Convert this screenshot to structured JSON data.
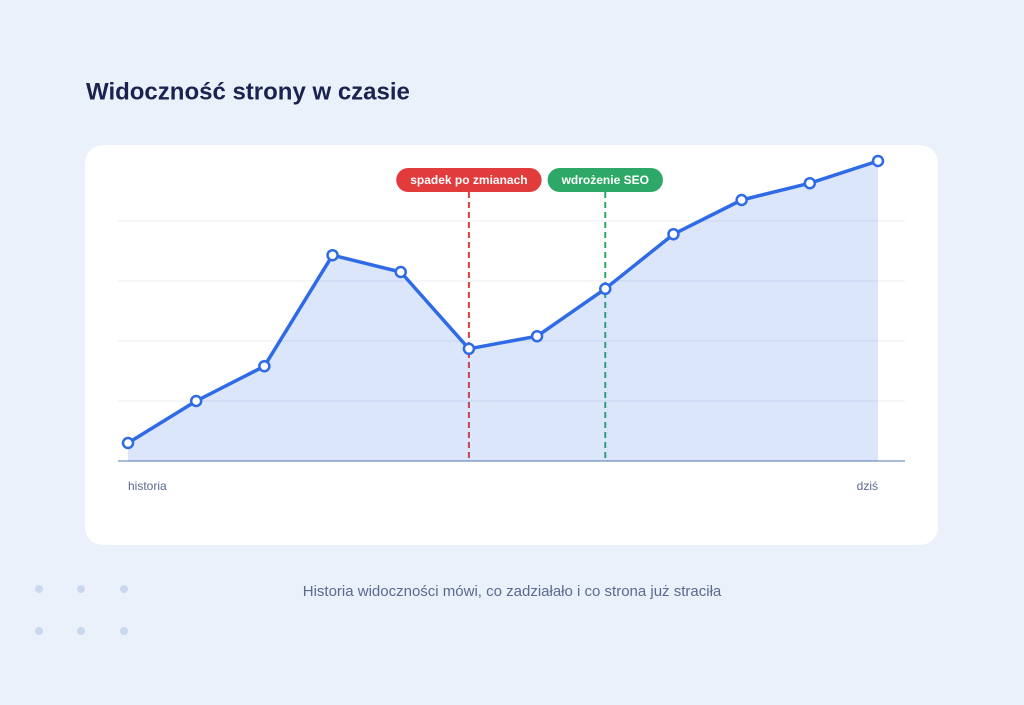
{
  "title": "Widoczność strony w czasie",
  "caption": "Historia widoczności mówi, co zadziałało i co strona już straciła",
  "chart_data": {
    "type": "area",
    "categories": [
      "historia",
      null,
      null,
      null,
      null,
      null,
      null,
      null,
      null,
      null,
      null,
      "dziś"
    ],
    "series": [
      {
        "color": "#2f6be6",
        "values": [
          0.3,
          1.0,
          1.58,
          3.43,
          3.15,
          1.87,
          2.08,
          2.87,
          3.78,
          4.35,
          4.63,
          5.0
        ]
      }
    ],
    "ylim": [
      0,
      5
    ],
    "yticks": [
      0,
      1,
      2,
      3,
      4
    ],
    "grid": true,
    "markers": [
      {
        "label": "spadek po zmianach",
        "index": 5,
        "color": "#e23b3b"
      },
      {
        "label": "wdrożenie SEO",
        "index": 7,
        "color": "#2ea866"
      }
    ]
  }
}
